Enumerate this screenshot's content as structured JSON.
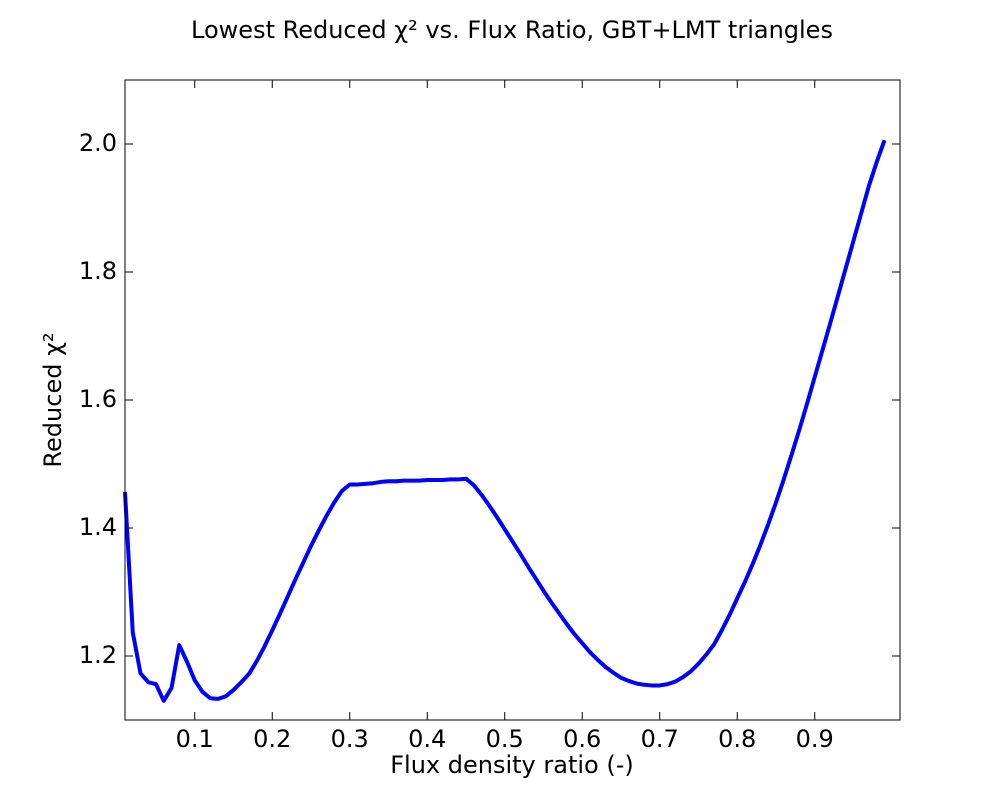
{
  "chart_data": {
    "type": "line",
    "title": "Lowest Reduced χ²  vs. Flux Ratio, GBT+LMT triangles",
    "x_label": "Flux density ratio (-)",
    "y_label": "Reduced χ²",
    "x": [
      0.01,
      0.02,
      0.03,
      0.04,
      0.05,
      0.06,
      0.07,
      0.08,
      0.09,
      0.1,
      0.11,
      0.12,
      0.13,
      0.14,
      0.15,
      0.16,
      0.17,
      0.18,
      0.19,
      0.2,
      0.21,
      0.22,
      0.23,
      0.24,
      0.25,
      0.26,
      0.27,
      0.28,
      0.29,
      0.3,
      0.31,
      0.32,
      0.33,
      0.34,
      0.35,
      0.36,
      0.37,
      0.38,
      0.39,
      0.4,
      0.41,
      0.42,
      0.43,
      0.44,
      0.45,
      0.46,
      0.47,
      0.48,
      0.49,
      0.5,
      0.51,
      0.52,
      0.53,
      0.54,
      0.55,
      0.56,
      0.57,
      0.58,
      0.59,
      0.6,
      0.61,
      0.62,
      0.63,
      0.64,
      0.65,
      0.66,
      0.67,
      0.68,
      0.69,
      0.7,
      0.71,
      0.72,
      0.73,
      0.74,
      0.75,
      0.76,
      0.77,
      0.78,
      0.79,
      0.8,
      0.81,
      0.82,
      0.83,
      0.84,
      0.85,
      0.86,
      0.87,
      0.88,
      0.89,
      0.9,
      0.91,
      0.92,
      0.93,
      0.94,
      0.95,
      0.96,
      0.97,
      0.98,
      0.99
    ],
    "series": [
      {
        "color": "#0000ff",
        "values": [
          1.456,
          1.237,
          1.173,
          1.159,
          1.156,
          1.13,
          1.15,
          1.217,
          1.191,
          1.162,
          1.144,
          1.134,
          1.133,
          1.137,
          1.147,
          1.159,
          1.172,
          1.192,
          1.215,
          1.24,
          1.266,
          1.293,
          1.32,
          1.346,
          1.372,
          1.396,
          1.419,
          1.44,
          1.458,
          1.468,
          1.468,
          1.469,
          1.47,
          1.472,
          1.473,
          1.473,
          1.474,
          1.474,
          1.474,
          1.475,
          1.475,
          1.475,
          1.476,
          1.476,
          1.477,
          1.467,
          1.452,
          1.435,
          1.417,
          1.398,
          1.379,
          1.36,
          1.34,
          1.321,
          1.302,
          1.284,
          1.267,
          1.25,
          1.234,
          1.22,
          1.206,
          1.194,
          1.183,
          1.174,
          1.166,
          1.161,
          1.157,
          1.155,
          1.154,
          1.154,
          1.156,
          1.16,
          1.167,
          1.176,
          1.188,
          1.202,
          1.218,
          1.24,
          1.264,
          1.29,
          1.316,
          1.344,
          1.374,
          1.406,
          1.44,
          1.476,
          1.514,
          1.553,
          1.594,
          1.636,
          1.678,
          1.72,
          1.763,
          1.806,
          1.849,
          1.892,
          1.935,
          1.972,
          2.006
        ]
      }
    ],
    "xlim": [
      0.01,
      1.01
    ],
    "ylim": [
      1.1,
      2.1
    ],
    "xticks": [
      0.1,
      0.2,
      0.3,
      0.4,
      0.5,
      0.6,
      0.7,
      0.8,
      0.9
    ],
    "yticks": [
      1.2,
      1.4,
      1.6,
      1.8,
      {
        "value": 2,
        "label": "2.0"
      }
    ],
    "grid": false
  }
}
